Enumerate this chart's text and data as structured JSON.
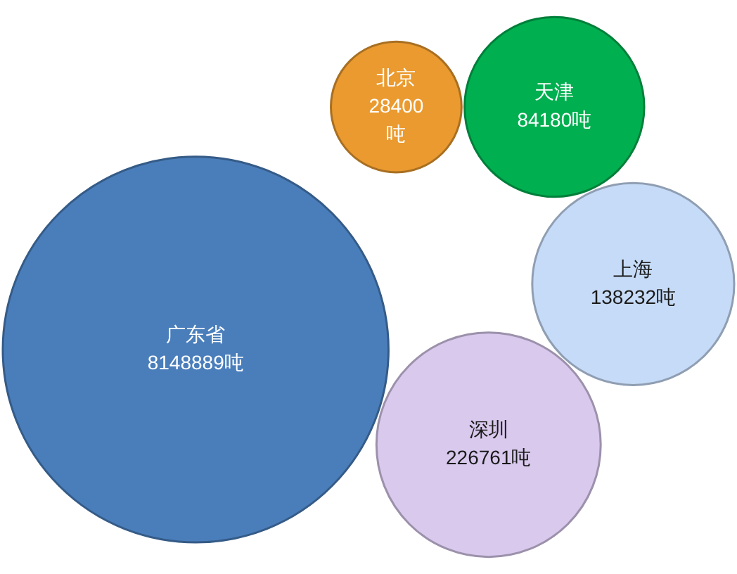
{
  "chart_data": {
    "type": "other",
    "categories": [
      "广东省",
      "深圳",
      "上海",
      "天津",
      "北京"
    ],
    "values": [
      8148889,
      226761,
      138232,
      84180,
      28400
    ],
    "colors": [
      "#4a7ebb",
      "#d8c9ed",
      "#c6dbf7",
      "#00b050",
      "#ea9a2f"
    ],
    "value_labels": [
      "8148889吨",
      "226761吨",
      "138232吨",
      "84180吨",
      "28400吨"
    ]
  }
}
